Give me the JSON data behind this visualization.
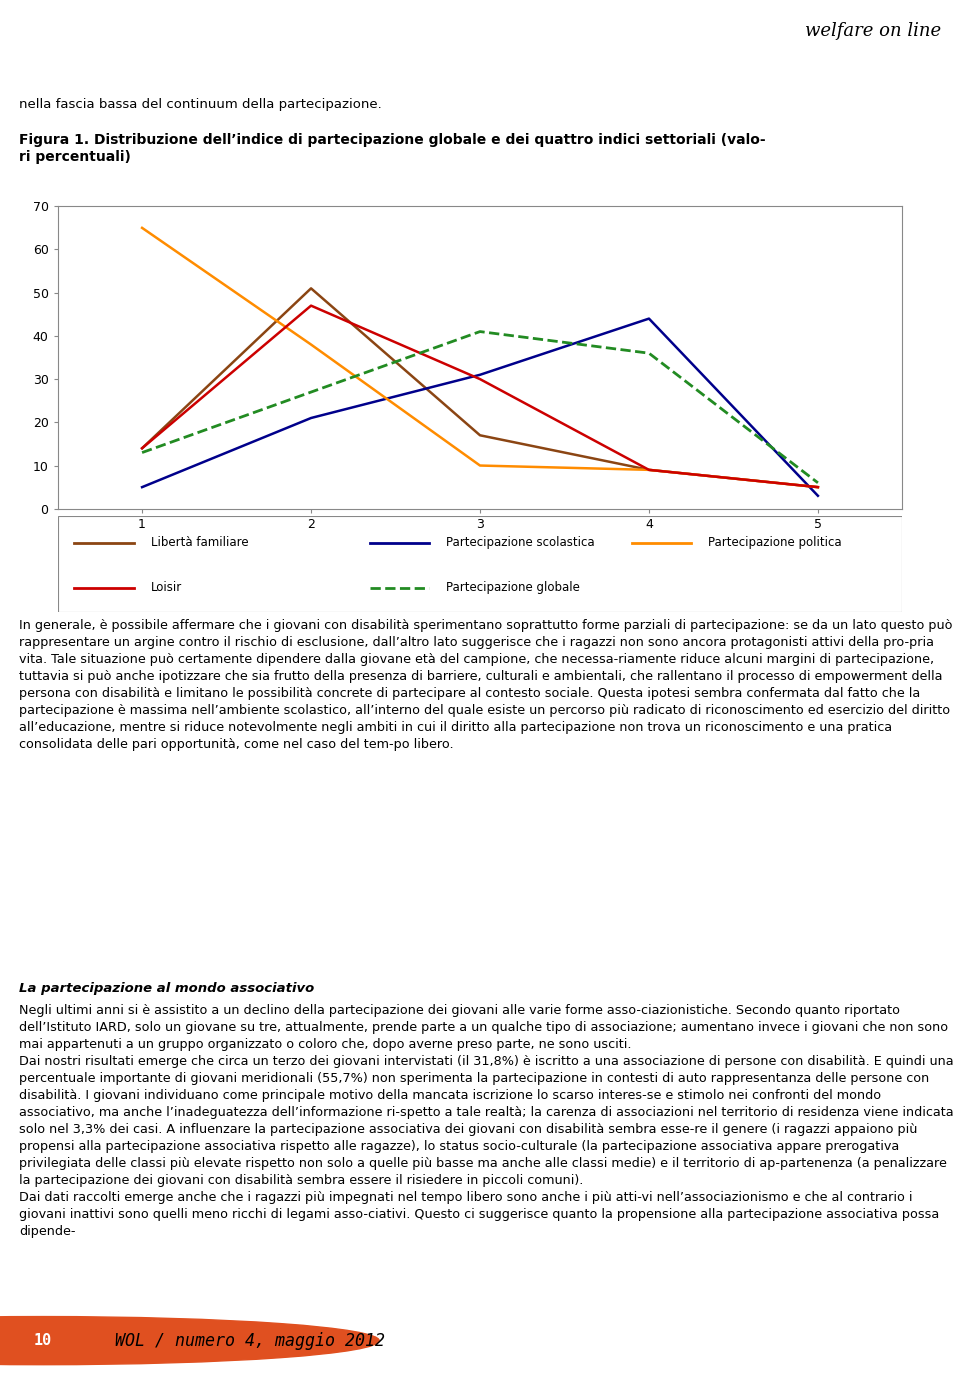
{
  "header_text": "welfare on line",
  "intro_text": "nella fascia bassa del continuum della partecipazione.",
  "figure_title": "Figura 1. Distribuzione dell’indice di partecipazione globale e dei quattro indici settoriali (valo-\nri percentuali)",
  "x_values": [
    1,
    2,
    3,
    4,
    5
  ],
  "series": {
    "Libertà familiare": {
      "y": [
        14,
        51,
        17,
        9,
        5
      ],
      "color": "#8B4513",
      "linestyle": "solid",
      "linewidth": 1.8
    },
    "Partecipazione scolastica": {
      "y": [
        5,
        21,
        31,
        44,
        3
      ],
      "color": "#00008B",
      "linestyle": "solid",
      "linewidth": 1.8
    },
    "Partecipazione politica": {
      "y": [
        65,
        38,
        10,
        9,
        5
      ],
      "color": "#FF8C00",
      "linestyle": "solid",
      "linewidth": 1.8
    },
    "Loisir": {
      "y": [
        14,
        47,
        30,
        9,
        5
      ],
      "color": "#CC0000",
      "linestyle": "solid",
      "linewidth": 1.8
    },
    "Partecipazione globale": {
      "y": [
        13,
        27,
        41,
        36,
        6
      ],
      "color": "#228B22",
      "linestyle": "dashed",
      "linewidth": 2.0
    }
  },
  "ylim": [
    0,
    70
  ],
  "yticks": [
    0,
    10,
    20,
    30,
    40,
    50,
    60,
    70
  ],
  "chart_bg": "#ffffff",
  "chart_border": "#888888",
  "legend_items": [
    {
      "label": "Libertà familiare",
      "color": "#8B4513",
      "linestyle": "solid"
    },
    {
      "label": "Partecipazione scolastica",
      "color": "#00008B",
      "linestyle": "solid"
    },
    {
      "label": "Partecipazione politica",
      "color": "#FF8C00",
      "linestyle": "solid"
    },
    {
      "label": "Loisir",
      "color": "#CC0000",
      "linestyle": "solid"
    },
    {
      "label": "Partecipazione globale",
      "color": "#228B22",
      "linestyle": "dashed"
    }
  ],
  "body_paragraphs": [
    "In generale, è possibile affermare che i giovani con disabilità sperimentano soprattutto forme parziali di partecipazione: se da un lato questo può rappresentare un argine contro il rischio di esclusione, dall’altro lato suggerisce che i ragazzi non sono ancora protagonisti attivi della pro-pria vita. Tale situazione può certamente dipendere dalla giovane età del campione, che necessa-riamente riduce alcuni margini di partecipazione, tuttavia si può anche ipotizzare che sia frutto della presenza di barriere, culturali e ambientali, che rallentano il processo di empowerment della persona con disabilità e limitano le possibilità concrete di partecipare al contesto sociale. Questa ipotesi sembra confermata dal fatto che la partecipazione è massima nell’ambiente scolastico, all’interno del quale esiste un percorso più radicato di riconoscimento ed esercizio del diritto all’educazione, mentre si riduce notevolmente negli ambiti in cui il diritto alla partecipazione non trova un riconoscimento e una pratica consolidata delle pari opportunità, come nel caso del tem-po libero.",
    "La partecipazione al mondo associativo",
    "Negli ultimi anni si è assistito a un declino della partecipazione dei giovani alle varie forme asso-ciazionistiche. Secondo quanto riportato dell’Istituto IARD, solo un giovane su tre, attualmente, prende parte a un qualche tipo di associazione; aumentano invece i giovani che non sono mai appartenuti a un gruppo organizzato o coloro che, dopo averne preso parte, ne sono usciti.\nDai nostri risultati emerge che circa un terzo dei giovani intervistati (il 31,8%) è iscritto a una associazione di persone con disabilità. E quindi una percentuale importante di giovani meridionali (55,7%) non sperimenta la partecipazione in contesti di auto rappresentanza delle persone con disabilità. I giovani individuano come principale motivo della mancata iscrizione lo scarso interes-se e stimolo nei confronti del mondo associativo, ma anche l’inadeguatezza dell’informazione ri-spetto a tale realtà; la carenza di associazioni nel territorio di residenza viene indicata solo nel 3,3% dei casi. A influenzare la partecipazione associativa dei giovani con disabilità sembra esse-re il genere (i ragazzi appaiono più propensi alla partecipazione associativa rispetto alle ragazze), lo status socio-culturale (la partecipazione associativa appare prerogativa privilegiata delle classi più elevate rispetto non solo a quelle più basse ma anche alle classi medie) e il territorio di ap-partenenza (a penalizzare la partecipazione dei giovani con disabilità sembra essere il risiedere in piccoli comuni).\nDai dati raccolti emerge anche che i ragazzi più impegnati nel tempo libero sono anche i più atti-vi nell’associazionismo e che al contrario i giovani inattivi sono quelli meno ricchi di legami asso-ciativi. Questo ci suggerisce quanto la propensione alla partecipazione associativa possa dipende-"
  ],
  "footer_number": "10",
  "footer_text": "WOL / numero 4, maggio 2012",
  "red_bar_color": "#CC0000",
  "header_line_red": "#CC0000",
  "header_line_gray": "#888888"
}
